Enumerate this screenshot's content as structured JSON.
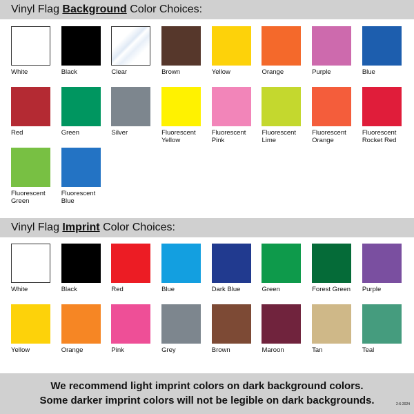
{
  "background_section": {
    "title_pre": "Vinyl Flag ",
    "title_bold": "Background",
    "title_post": " Color Choices:",
    "swatches": [
      {
        "label": "White",
        "color": "#ffffff"
      },
      {
        "label": "Black",
        "color": "#000000"
      },
      {
        "label": "Clear",
        "color": "#f4f8fc"
      },
      {
        "label": "Brown",
        "color": "#56372b"
      },
      {
        "label": "Yellow",
        "color": "#fdd20a"
      },
      {
        "label": "Orange",
        "color": "#f4692b"
      },
      {
        "label": "Purple",
        "color": "#cd6aad"
      },
      {
        "label": "Blue",
        "color": "#1d5eae"
      },
      {
        "label": "Red",
        "color": "#b42a33"
      },
      {
        "label": "Green",
        "color": "#009660"
      },
      {
        "label": "Silver",
        "color": "#7d868e"
      },
      {
        "label": "Fluorescent\nYellow",
        "color": "#fff200"
      },
      {
        "label": "Fluorescent\nPink",
        "color": "#f285b9"
      },
      {
        "label": "Fluorescent\nLime",
        "color": "#c4d82e"
      },
      {
        "label": "Fluorescent\nOrange",
        "color": "#f45d3b"
      },
      {
        "label": "Fluorescent\nRocket Red",
        "color": "#e01d3a"
      },
      {
        "label": "Fluorescent\nGreen",
        "color": "#78c043"
      },
      {
        "label": "Fluorescent\nBlue",
        "color": "#2373c4"
      }
    ]
  },
  "imprint_section": {
    "title_pre": "Vinyl Flag ",
    "title_bold": "Imprint",
    "title_post": " Color Choices:",
    "swatches": [
      {
        "label": "White",
        "color": "#ffffff"
      },
      {
        "label": "Black",
        "color": "#000000"
      },
      {
        "label": "Red",
        "color": "#ec1c24"
      },
      {
        "label": "Blue",
        "color": "#139fe0"
      },
      {
        "label": "Dark Blue",
        "color": "#213a8f"
      },
      {
        "label": "Green",
        "color": "#0e9a4b"
      },
      {
        "label": "Forest Green",
        "color": "#056b38"
      },
      {
        "label": "Purple",
        "color": "#7a4fa0"
      },
      {
        "label": "Yellow",
        "color": "#fdd20a"
      },
      {
        "label": "Orange",
        "color": "#f68624"
      },
      {
        "label": "Pink",
        "color": "#ee4f97"
      },
      {
        "label": "Grey",
        "color": "#7d868e"
      },
      {
        "label": "Brown",
        "color": "#7d4a35"
      },
      {
        "label": "Maroon",
        "color": "#70233d"
      },
      {
        "label": "Tan",
        "color": "#cfb888"
      },
      {
        "label": "Teal",
        "color": "#459c7e"
      }
    ]
  },
  "footer": {
    "line1": "We recommend light imprint colors on dark background colors.",
    "line2": "Some darker imprint colors will not be legible on dark backgrounds.",
    "date": "2-6-2024"
  }
}
